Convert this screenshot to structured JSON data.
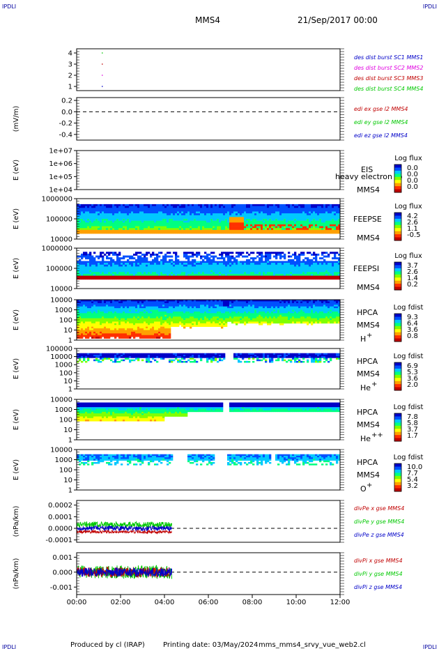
{
  "corners": {
    "tl": "IPDLI",
    "tr": "IPDLI",
    "bl": "IPDLI",
    "br": "IPDLI"
  },
  "header": {
    "spacecraft": "MMS4",
    "date": "21/Sep/2017 00:00"
  },
  "footer": {
    "produced": "Produced by cl (IRAP)",
    "printing": "Printing date: 03/May/2024",
    "script": "mms_mms4_srvy_vue_web2.cl"
  },
  "colors": {
    "rainbow": [
      "#0000c8",
      "#0050ff",
      "#00c8ff",
      "#00ff80",
      "#80ff00",
      "#ffff00",
      "#ffa000",
      "#ff3000",
      "#c00000"
    ]
  },
  "chart_data": [
    {
      "type": "scatter",
      "ylim": [
        0.5,
        4.5
      ],
      "yticks": [
        "4",
        "3",
        "2",
        "1"
      ],
      "legend": [
        {
          "text": "des dist burst SC1 MMS1",
          "color": "#0000c8"
        },
        {
          "text": "des dist burst SC2 MMS2",
          "color": "#e000e0"
        },
        {
          "text": "des dist burst SC3 MMS3",
          "color": "#c00000"
        },
        {
          "text": "des dist burst SC4 MMS4",
          "color": "#00c800"
        }
      ],
      "points": [
        {
          "x": "01:10",
          "y": 4
        },
        {
          "x": "01:10",
          "y": 3
        },
        {
          "x": "01:10",
          "y": 2
        },
        {
          "x": "01:10",
          "y": 1
        }
      ]
    },
    {
      "type": "line",
      "ylabel": "(mV/m)",
      "ylim": [
        -0.5,
        0.25
      ],
      "yticks": [
        "0.2",
        "0.0",
        "-0.2",
        "-0.4"
      ],
      "reference": 0.0,
      "legend": [
        {
          "text": "edi ex gse l2 MMS4",
          "color": "#c00000"
        },
        {
          "text": "edi ey gse l2 MMS4",
          "color": "#00c800"
        },
        {
          "text": "edi ez gse l2 MMS4",
          "color": "#0000c8"
        }
      ]
    },
    {
      "type": "heatmap",
      "ylabel": "E (eV)",
      "yticks": [
        "1e+07",
        "1e+06",
        "1e+05",
        "1e+04"
      ],
      "instrument": "EIS",
      "spacecraft": "MMS4",
      "overlay": "heavy electron to",
      "colorbar": {
        "title": "Log flux",
        "values": [
          "0.0",
          "0.0",
          "0.0",
          "0.0"
        ]
      }
    },
    {
      "type": "heatmap",
      "ylabel": "E (eV)",
      "yticks": [
        "1000000",
        "100000",
        "10000"
      ],
      "instrument": "FEEPSE",
      "spacecraft": "MMS4",
      "colorbar": {
        "title": "Log flux",
        "values": [
          "4.2",
          "2.6",
          "1.1",
          "-0.5"
        ]
      }
    },
    {
      "type": "heatmap",
      "ylabel": "E (eV)",
      "yticks": [
        "1000000",
        "100000",
        "10000"
      ],
      "instrument": "FEEPSI",
      "spacecraft": "MMS4",
      "colorbar": {
        "title": "Log flux",
        "values": [
          "3.7",
          "2.6",
          "1.4",
          "0.2"
        ]
      }
    },
    {
      "type": "heatmap",
      "ylabel": "E (eV)",
      "yticks": [
        "10000",
        "1000",
        "100",
        "10",
        "1"
      ],
      "instrument": "HPCA",
      "spacecraft": "MMS4",
      "species": "H",
      "charge": "+",
      "colorbar": {
        "title": "Log fdist",
        "values": [
          "9.3",
          "6.4",
          "3.6",
          "0.8"
        ]
      }
    },
    {
      "type": "heatmap",
      "ylabel": "E (eV)",
      "yticks": [
        "100000",
        "10000",
        "1000",
        "100",
        "10",
        "1"
      ],
      "instrument": "HPCA",
      "spacecraft": "MMS4",
      "species": "He",
      "charge": "+",
      "colorbar": {
        "title": "Log fdist",
        "values": [
          "6.9",
          "5.3",
          "3.6",
          "2.0"
        ]
      }
    },
    {
      "type": "heatmap",
      "ylabel": "E (eV)",
      "yticks": [
        "10000",
        "1000",
        "100",
        "10",
        "1"
      ],
      "instrument": "HPCA",
      "spacecraft": "MMS4",
      "species": "He",
      "charge": "++",
      "colorbar": {
        "title": "Log fdist",
        "values": [
          "7.8",
          "5.8",
          "3.7",
          "1.7"
        ]
      }
    },
    {
      "type": "heatmap",
      "ylabel": "E (eV)",
      "yticks": [
        "10000",
        "1000",
        "100",
        "10",
        "1"
      ],
      "instrument": "HPCA",
      "spacecraft": "MMS4",
      "species": "O",
      "charge": "+",
      "colorbar": {
        "title": "Log fdist",
        "values": [
          "10.0",
          "7.7",
          "5.4",
          "3.2"
        ]
      }
    },
    {
      "type": "line",
      "ylabel": "(nPa/km)",
      "ylim": [
        -0.00012,
        0.00024
      ],
      "yticks": [
        "0.0002",
        "0.0001",
        "0.0000",
        "-0.0001"
      ],
      "reference": 0.0,
      "legend": [
        {
          "text": "divPe x gse MMS4",
          "color": "#c00000"
        },
        {
          "text": "divPe y gse MMS4",
          "color": "#00c800"
        },
        {
          "text": "divPe z gse MMS4",
          "color": "#0000c8"
        }
      ],
      "series": [
        {
          "name": "divPe x gse MMS4",
          "x_range": [
            "00:00",
            "04:20"
          ],
          "mean": -3e-05
        },
        {
          "name": "divPe y gse MMS4",
          "x_range": [
            "00:00",
            "04:20"
          ],
          "mean": 3e-05
        },
        {
          "name": "divPe z gse MMS4",
          "x_range": [
            "00:00",
            "04:20"
          ],
          "mean": 0.0
        }
      ]
    },
    {
      "type": "line",
      "ylabel": "(nPa/km)",
      "ylim": [
        -0.0015,
        0.0013
      ],
      "yticks": [
        "0.001",
        "0.000",
        "-0.001"
      ],
      "reference": 0.0,
      "legend": [
        {
          "text": "divPi x gse MMS4",
          "color": "#c00000"
        },
        {
          "text": "divPi y gse MMS4",
          "color": "#00c800"
        },
        {
          "text": "divPi z gse MMS4",
          "color": "#0000c8"
        }
      ],
      "series": [
        {
          "name": "divPi x gse MMS4",
          "x_range": [
            "00:00",
            "04:20"
          ],
          "mean": 0.0
        },
        {
          "name": "divPi y gse MMS4",
          "x_range": [
            "00:00",
            "04:20"
          ],
          "mean": 0.0
        },
        {
          "name": "divPi z gse MMS4",
          "x_range": [
            "00:00",
            "04:20"
          ],
          "mean": 0.0
        }
      ]
    }
  ],
  "xaxis": {
    "ticks": [
      "00:00",
      "02:00",
      "04:00",
      "06:00",
      "08:00",
      "10:00",
      "12:00"
    ]
  }
}
